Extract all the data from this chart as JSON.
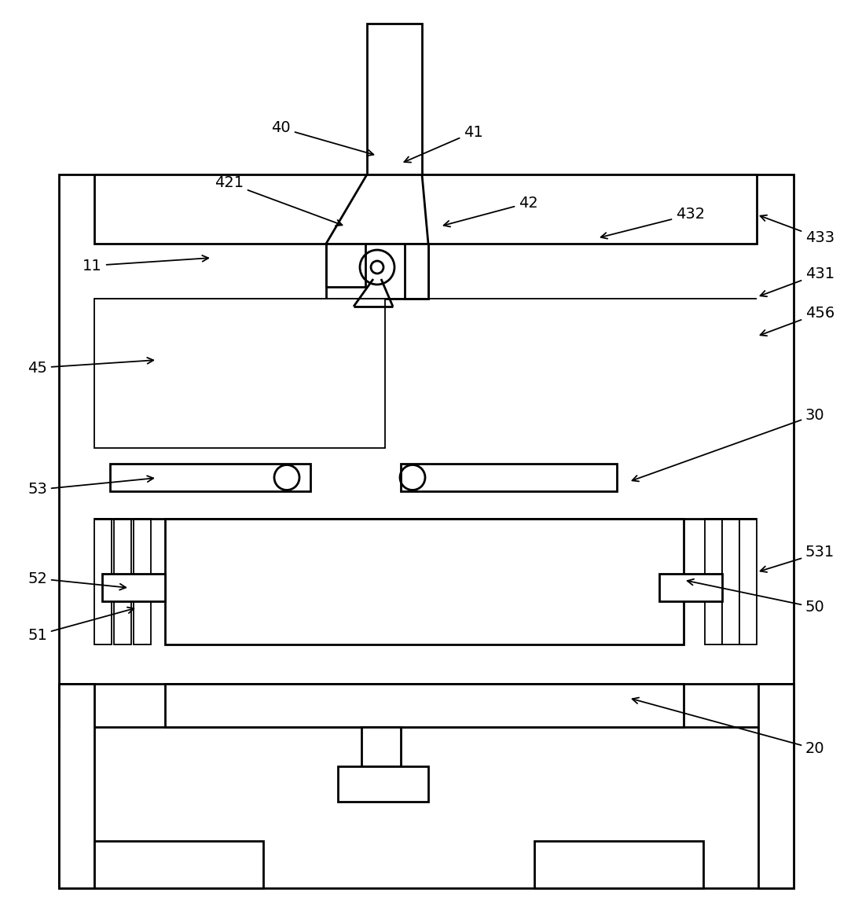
{
  "bg_color": "#ffffff",
  "line_color": "#000000",
  "lw": 2.0,
  "tlw": 1.3,
  "fig_width": 10.83,
  "fig_height": 11.68,
  "dpi": 100
}
